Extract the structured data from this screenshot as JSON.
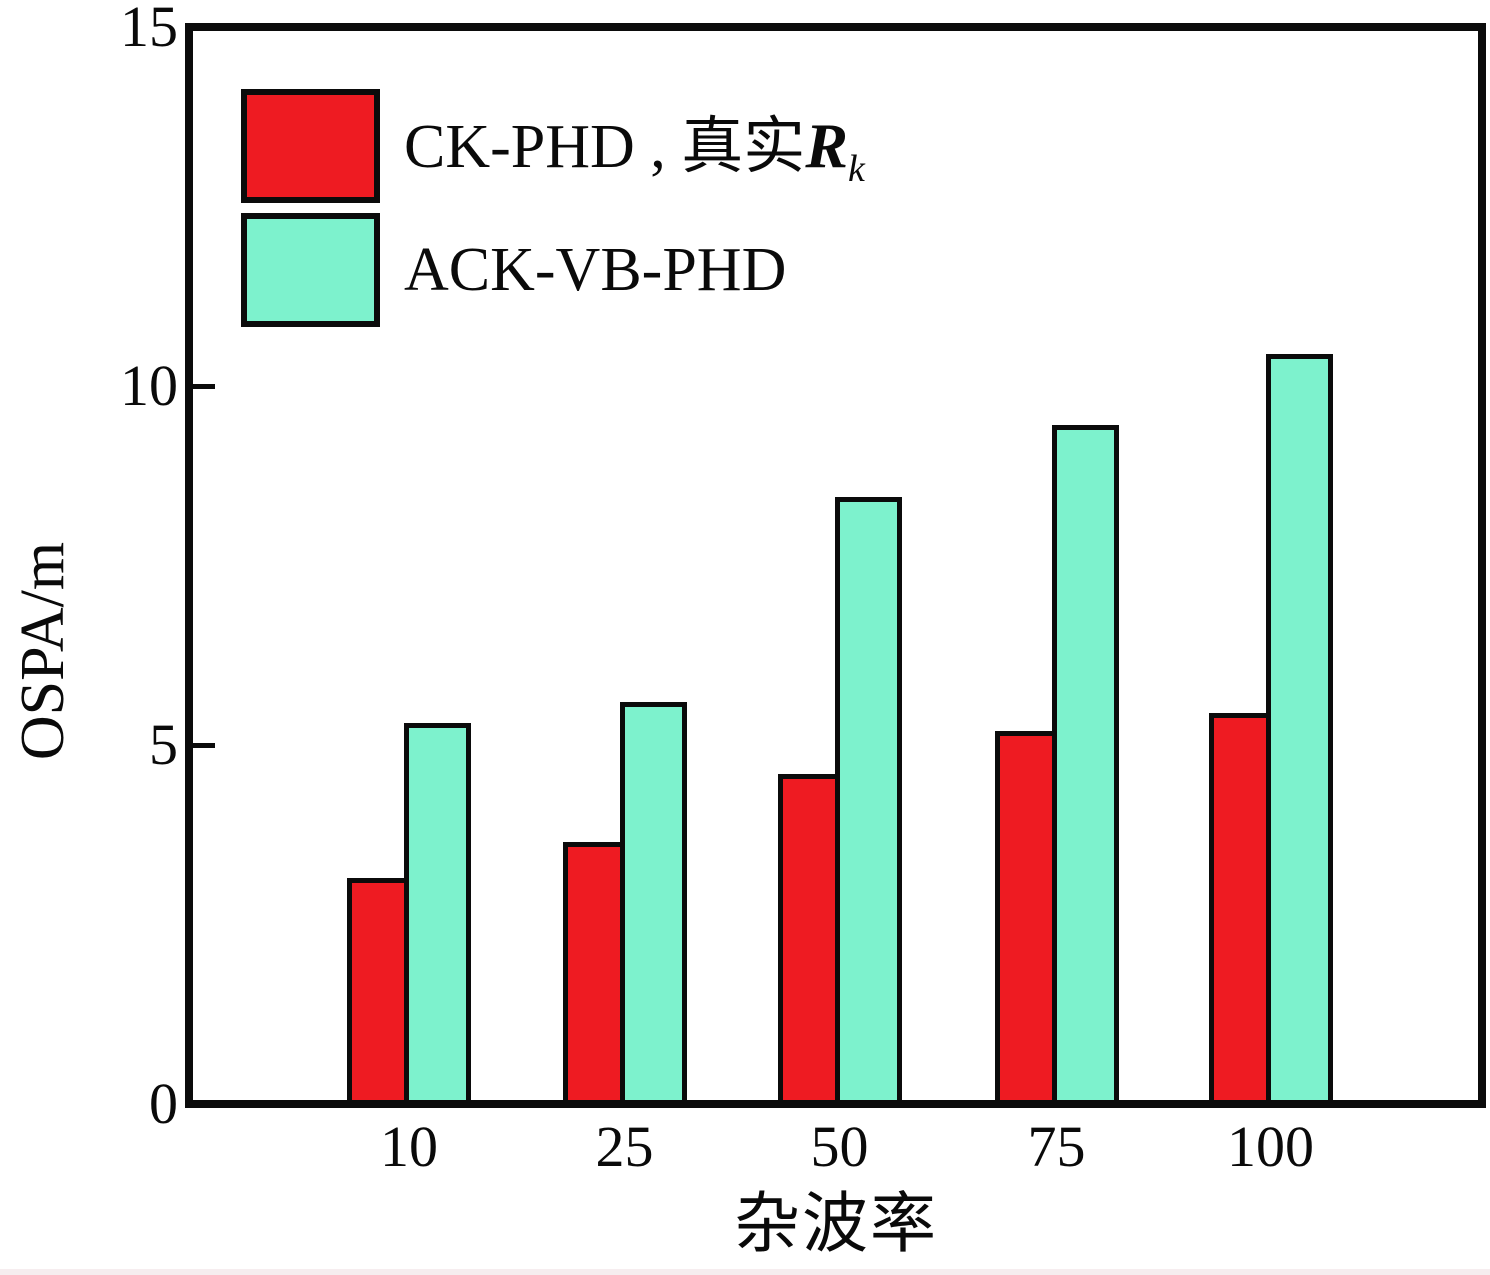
{
  "figure": {
    "ylabel": "OSPA/m",
    "xlabel": "杂波率"
  },
  "legend": {
    "entries": [
      {
        "prefix": "CK-PHD , 真实",
        "math_symbol": "R",
        "subscript": "k",
        "color": "#EE1B22"
      },
      {
        "label": "ACK-VB-PHD",
        "color": "#7DF2CD"
      }
    ]
  },
  "chart_data": {
    "type": "bar",
    "categories": [
      "10",
      "25",
      "50",
      "75",
      "100"
    ],
    "series": [
      {
        "name": "CK-PHD , 真实R_k",
        "color": "#EE1B22",
        "values": [
          3.15,
          3.65,
          4.6,
          5.2,
          5.45
        ]
      },
      {
        "name": "ACK-VB-PHD",
        "color": "#7DF2CD",
        "values": [
          5.3,
          5.6,
          8.45,
          9.45,
          10.45
        ]
      }
    ],
    "title": "",
    "xlabel": "杂波率",
    "ylabel": "OSPA/m",
    "ylim": [
      0,
      15
    ],
    "y_ticks": [
      0,
      5,
      10,
      15
    ],
    "y_tick_labels": [
      "0",
      "5",
      "10",
      "15"
    ],
    "grid": false,
    "bar_outline_color": "#0b0b0b",
    "axis_color": "#0b0b0b",
    "legend_position": "upper-left"
  }
}
